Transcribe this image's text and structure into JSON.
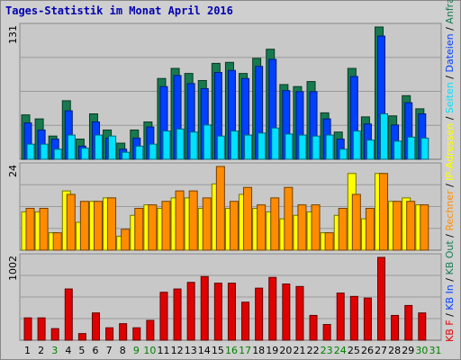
{
  "title": "Tages-Statistik im Monat April 2016",
  "colors": {
    "anfragen": "#177a4f",
    "dateien": "#0040ff",
    "seiten": "#00e0ff",
    "rechner": "#ffff00",
    "besuche": "#ff8c00",
    "kbf": "#e00000",
    "weekend": "#008000",
    "weekday": "#000000"
  },
  "chart_data": [
    {
      "type": "bar",
      "y_max_label": "131",
      "categories": [
        "1",
        "2",
        "3",
        "4",
        "5",
        "6",
        "7",
        "8",
        "9",
        "10",
        "11",
        "12",
        "13",
        "14",
        "15",
        "16",
        "17",
        "18",
        "19",
        "20",
        "21",
        "22",
        "23",
        "24",
        "25",
        "26",
        "27",
        "28",
        "29",
        "30",
        "31"
      ],
      "weekend_days": [
        "3",
        "9",
        "10",
        "16",
        "17",
        "23",
        "24",
        "30",
        "31"
      ],
      "series": [
        {
          "name": "Anfragen",
          "color_key": "anfragen",
          "values": [
            44,
            40,
            23,
            58,
            20,
            45,
            29,
            16,
            29,
            37,
            80,
            90,
            85,
            78,
            95,
            96,
            85,
            100,
            109,
            74,
            72,
            77,
            46,
            27,
            90,
            42,
            131,
            43,
            63,
            50,
            0
          ]
        },
        {
          "name": "Dateien",
          "color_key": "dateien",
          "values": [
            36,
            29,
            20,
            48,
            13,
            37,
            21,
            10,
            21,
            32,
            72,
            83,
            75,
            70,
            86,
            88,
            80,
            92,
            99,
            68,
            67,
            67,
            40,
            20,
            82,
            35,
            122,
            34,
            56,
            45,
            0
          ]
        },
        {
          "name": "Seiten",
          "color_key": "seiten",
          "values": [
            15,
            15,
            10,
            24,
            11,
            24,
            23,
            7,
            13,
            15,
            28,
            30,
            27,
            34,
            23,
            28,
            24,
            26,
            31,
            25,
            24,
            23,
            24,
            10,
            28,
            19,
            45,
            18,
            22,
            21,
            0
          ]
        }
      ]
    },
    {
      "type": "bar",
      "y_max_label": "24",
      "categories": [
        "1",
        "2",
        "3",
        "4",
        "5",
        "6",
        "7",
        "8",
        "9",
        "10",
        "11",
        "12",
        "13",
        "14",
        "15",
        "16",
        "17",
        "18",
        "19",
        "20",
        "21",
        "22",
        "23",
        "24",
        "25",
        "26",
        "27",
        "28",
        "29",
        "30",
        "31"
      ],
      "series": [
        {
          "name": "Rechner",
          "color_key": "rechner",
          "values": [
            11,
            11,
            5,
            17,
            8,
            14,
            15,
            4,
            10,
            13,
            12,
            15,
            15,
            12,
            19,
            12,
            16,
            12,
            11,
            9,
            10,
            11,
            5,
            10,
            22,
            9,
            22,
            14,
            15,
            13,
            0
          ]
        },
        {
          "name": "Besuche",
          "color_key": "besuche",
          "values": [
            12,
            12,
            5,
            16,
            14,
            14,
            15,
            6,
            12,
            13,
            14,
            17,
            17,
            15,
            24,
            14,
            18,
            13,
            15,
            18,
            13,
            13,
            5,
            12,
            16,
            12,
            22,
            14,
            14,
            13,
            0
          ]
        }
      ]
    },
    {
      "type": "bar",
      "y_max_label": "1002",
      "categories": [
        "1",
        "2",
        "3",
        "4",
        "5",
        "6",
        "7",
        "8",
        "9",
        "10",
        "11",
        "12",
        "13",
        "14",
        "15",
        "16",
        "17",
        "18",
        "19",
        "20",
        "21",
        "22",
        "23",
        "24",
        "25",
        "26",
        "27",
        "28",
        "29",
        "30",
        "31"
      ],
      "series": [
        {
          "name": "KB F",
          "color_key": "kbf",
          "values": [
            270,
            270,
            140,
            620,
            80,
            330,
            150,
            200,
            150,
            240,
            580,
            620,
            700,
            770,
            690,
            690,
            460,
            630,
            760,
            680,
            650,
            300,
            190,
            570,
            530,
            510,
            1002,
            300,
            420,
            330,
            0
          ]
        }
      ]
    }
  ],
  "legend": [
    {
      "text": "KB F",
      "color_key": "kbf"
    },
    {
      "text": " / ",
      "color_key": "weekday"
    },
    {
      "text": "KB In",
      "color_key": "dateien"
    },
    {
      "text": " / ",
      "color_key": "weekday"
    },
    {
      "text": "KB Out",
      "color_key": "anfragen"
    },
    {
      "text": " / ",
      "color_key": "weekday"
    },
    {
      "text": "Rechner",
      "color_key": "besuche"
    },
    {
      "text": " / ",
      "color_key": "weekday"
    },
    {
      "text": "IP-Adressen",
      "color_key": "rechner"
    },
    {
      "text": " / ",
      "color_key": "weekday"
    },
    {
      "text": "Seiten",
      "color_key": "seiten"
    },
    {
      "text": " / ",
      "color_key": "weekday"
    },
    {
      "text": "Dateien",
      "color_key": "dateien"
    },
    {
      "text": " / ",
      "color_key": "weekday"
    },
    {
      "text": "Anfragen",
      "color_key": "anfragen"
    }
  ]
}
